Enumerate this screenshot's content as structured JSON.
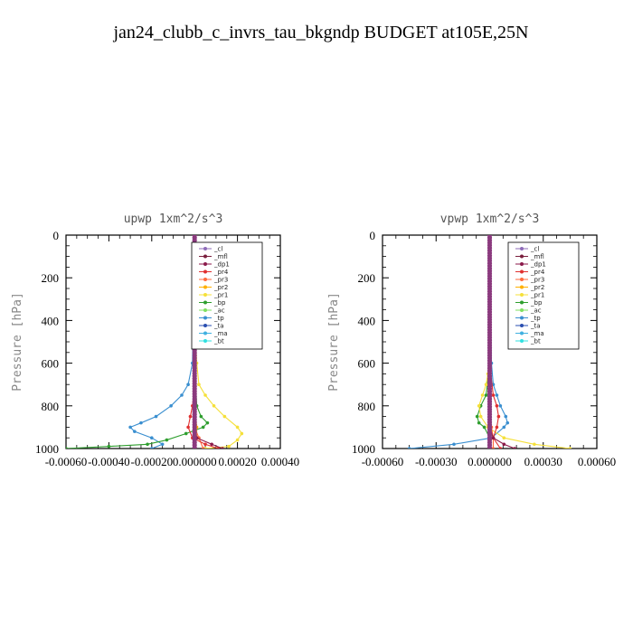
{
  "title": "jan24_clubb_c_invrs_tau_bkgndp  BUDGET at105E,25N",
  "chart_data": [
    {
      "type": "line",
      "title": "upwp   1xm^2/s^3",
      "ylabel": "Pressure [hPa]",
      "xlim": [
        -0.0006,
        0.0004
      ],
      "ylim": [
        1000,
        0
      ],
      "xtick_labels": [
        "-0.00060",
        "-0.00040",
        "-0.00020",
        "0.000000",
        "0.00020",
        "0.00040"
      ],
      "ytick_labels": [
        "0",
        "200",
        "400",
        "600",
        "800",
        "1000"
      ],
      "yticks": [
        0,
        200,
        400,
        600,
        800,
        1000
      ],
      "series": [
        {
          "name": "_cl",
          "color": "#8e6bb8",
          "p": [
            0,
            100,
            200,
            300,
            400,
            500,
            600,
            700,
            800,
            900,
            950,
            1000
          ],
          "values": [
            0,
            0,
            0,
            0,
            0,
            0,
            0,
            0,
            0,
            0,
            0,
            0
          ]
        },
        {
          "name": "_mfl",
          "color": "#7a1f3d",
          "p": [
            0,
            100,
            200,
            300,
            400,
            500,
            600,
            700,
            800,
            900,
            950,
            1000
          ],
          "values": [
            0,
            0,
            0,
            0,
            0,
            0,
            0,
            0,
            0,
            0,
            0,
            0
          ]
        },
        {
          "name": "_dp1",
          "color": "#8b1a4a",
          "p": [
            0,
            200,
            400,
            600,
            800,
            900,
            950,
            980,
            1000
          ],
          "values": [
            0,
            0,
            0,
            0,
            0,
            0,
            1e-05,
            8e-05,
            0.00013
          ]
        },
        {
          "name": "_pr4",
          "color": "#e03030",
          "p": [
            0,
            400,
            700,
            800,
            850,
            900,
            950,
            980,
            1000
          ],
          "values": [
            0,
            0,
            0,
            -1e-05,
            -2e-05,
            -3e-05,
            -1e-05,
            5e-05,
            0.00011
          ]
        },
        {
          "name": "_pr3",
          "color": "#ff6a3d",
          "p": [
            0,
            500,
            800,
            900,
            950,
            1000
          ],
          "values": [
            0,
            0,
            0,
            0,
            2e-05,
            4e-05
          ]
        },
        {
          "name": "_pr2",
          "color": "#ffb000",
          "p": [
            0,
            500,
            700,
            800,
            900,
            950,
            1000
          ],
          "values": [
            0,
            0,
            0,
            0,
            1e-05,
            1e-05,
            0
          ]
        },
        {
          "name": "_pr1",
          "color": "#f5e03a",
          "p": [
            0,
            400,
            600,
            700,
            750,
            800,
            850,
            900,
            930,
            960,
            990,
            1000
          ],
          "values": [
            0,
            0,
            1e-05,
            2e-05,
            5e-05,
            9e-05,
            0.00014,
            0.0002,
            0.00022,
            0.0002,
            0.00016,
            5e-05
          ]
        },
        {
          "name": "_bp",
          "color": "#2e9e2e",
          "p": [
            0,
            600,
            800,
            850,
            880,
            900,
            930,
            960,
            980,
            990,
            1000
          ],
          "values": [
            0,
            0,
            1e-05,
            3e-05,
            6e-05,
            4e-05,
            -4e-05,
            -0.00013,
            -0.00022,
            -0.0004,
            -0.0006
          ]
        },
        {
          "name": "_ac",
          "color": "#7fe060",
          "p": [
            0,
            500,
            800,
            900,
            950,
            1000
          ],
          "values": [
            0,
            0,
            0,
            0,
            0,
            0
          ]
        },
        {
          "name": "_tp",
          "color": "#3a8fd0",
          "p": [
            0,
            600,
            700,
            750,
            800,
            850,
            880,
            900,
            920,
            950,
            980,
            1000
          ],
          "values": [
            0,
            -1e-05,
            -3e-05,
            -6e-05,
            -0.00011,
            -0.00018,
            -0.00025,
            -0.0003,
            -0.00028,
            -0.0002,
            -0.00015,
            -0.0002
          ]
        },
        {
          "name": "_ta",
          "color": "#2a4fb0",
          "p": [
            0,
            500,
            800,
            900,
            950,
            1000
          ],
          "values": [
            0,
            0,
            0,
            0,
            0,
            0
          ]
        },
        {
          "name": "_ma",
          "color": "#40b0e0",
          "p": [
            0,
            500,
            800,
            900,
            950,
            1000
          ],
          "values": [
            0,
            0,
            0,
            0,
            0,
            0
          ]
        },
        {
          "name": "_bt",
          "color": "#30e0e0",
          "p": [
            0,
            500,
            800,
            900,
            950,
            1000
          ],
          "values": [
            0,
            0,
            0,
            0,
            0,
            0
          ]
        }
      ]
    },
    {
      "type": "line",
      "title": "vpwp   1xm^2/s^3",
      "ylabel": "Pressure [hPa]",
      "xlim": [
        -0.0006,
        0.0006
      ],
      "ylim": [
        1000,
        0
      ],
      "xtick_labels": [
        "-0.00060",
        "-0.00030",
        "0.000000",
        "0.00030",
        "0.00060"
      ],
      "ytick_labels": [
        "0",
        "200",
        "400",
        "600",
        "800",
        "1000"
      ],
      "yticks": [
        0,
        200,
        400,
        600,
        800,
        1000
      ],
      "series": [
        {
          "name": "_cl",
          "color": "#8e6bb8",
          "p": [
            0,
            100,
            200,
            300,
            400,
            500,
            600,
            700,
            800,
            900,
            950,
            1000
          ],
          "values": [
            0,
            0,
            0,
            0,
            0,
            0,
            0,
            0,
            0,
            0,
            0,
            0
          ]
        },
        {
          "name": "_mfl",
          "color": "#7a1f3d",
          "p": [
            0,
            100,
            200,
            300,
            400,
            500,
            600,
            700,
            800,
            900,
            950,
            1000
          ],
          "values": [
            0,
            0,
            0,
            0,
            0,
            0,
            0,
            0,
            0,
            0,
            0,
            0
          ]
        },
        {
          "name": "_dp1",
          "color": "#8b1a4a",
          "p": [
            0,
            400,
            800,
            900,
            950,
            980,
            1000
          ],
          "values": [
            0,
            0,
            0,
            0,
            2e-05,
            8e-05,
            0.00014
          ]
        },
        {
          "name": "_pr4",
          "color": "#e03030",
          "p": [
            0,
            600,
            750,
            800,
            850,
            900,
            950,
            1000
          ],
          "values": [
            0,
            0,
            2e-05,
            4e-05,
            5e-05,
            4e-05,
            2e-05,
            6e-05
          ]
        },
        {
          "name": "_pr3",
          "color": "#ff6a3d",
          "p": [
            0,
            500,
            800,
            900,
            950,
            1000
          ],
          "values": [
            0,
            0,
            0,
            1e-05,
            2e-05,
            2e-05
          ]
        },
        {
          "name": "_pr2",
          "color": "#ffb000",
          "p": [
            0,
            500,
            800,
            900,
            950,
            1000
          ],
          "values": [
            0,
            0,
            0,
            0,
            1e-05,
            0
          ]
        },
        {
          "name": "_pr1",
          "color": "#f5e03a",
          "p": [
            0,
            500,
            650,
            700,
            750,
            800,
            850,
            900,
            950,
            980,
            1000
          ],
          "values": [
            0,
            0,
            -1e-05,
            -2e-05,
            -4e-05,
            -6e-05,
            -5e-05,
            -1e-05,
            8e-05,
            0.00025,
            0.00045
          ]
        },
        {
          "name": "_bp",
          "color": "#2e9e2e",
          "p": [
            0,
            600,
            750,
            800,
            850,
            880,
            900,
            950,
            1000
          ],
          "values": [
            0,
            0,
            -2e-05,
            -5e-05,
            -7e-05,
            -6e-05,
            -3e-05,
            0,
            0
          ]
        },
        {
          "name": "_ac",
          "color": "#7fe060",
          "p": [
            0,
            500,
            800,
            900,
            950,
            1000
          ],
          "values": [
            0,
            0,
            0,
            0,
            0,
            0
          ]
        },
        {
          "name": "_tp",
          "color": "#3a8fd0",
          "p": [
            0,
            600,
            700,
            750,
            800,
            850,
            880,
            900,
            950,
            980,
            1000
          ],
          "values": [
            0,
            1e-05,
            2e-05,
            4e-05,
            6e-05,
            9e-05,
            0.0001,
            8e-05,
            1e-05,
            -0.0002,
            -0.00045
          ]
        },
        {
          "name": "_ta",
          "color": "#2a4fb0",
          "p": [
            0,
            500,
            800,
            900,
            950,
            1000
          ],
          "values": [
            0,
            0,
            0,
            0,
            0,
            0
          ]
        },
        {
          "name": "_ma",
          "color": "#40b0e0",
          "p": [
            0,
            500,
            800,
            900,
            950,
            1000
          ],
          "values": [
            0,
            0,
            0,
            0,
            0,
            0
          ]
        },
        {
          "name": "_bt",
          "color": "#30e0e0",
          "p": [
            0,
            500,
            800,
            900,
            950,
            1000
          ],
          "values": [
            0,
            0,
            0,
            0,
            0,
            0
          ]
        }
      ]
    }
  ]
}
